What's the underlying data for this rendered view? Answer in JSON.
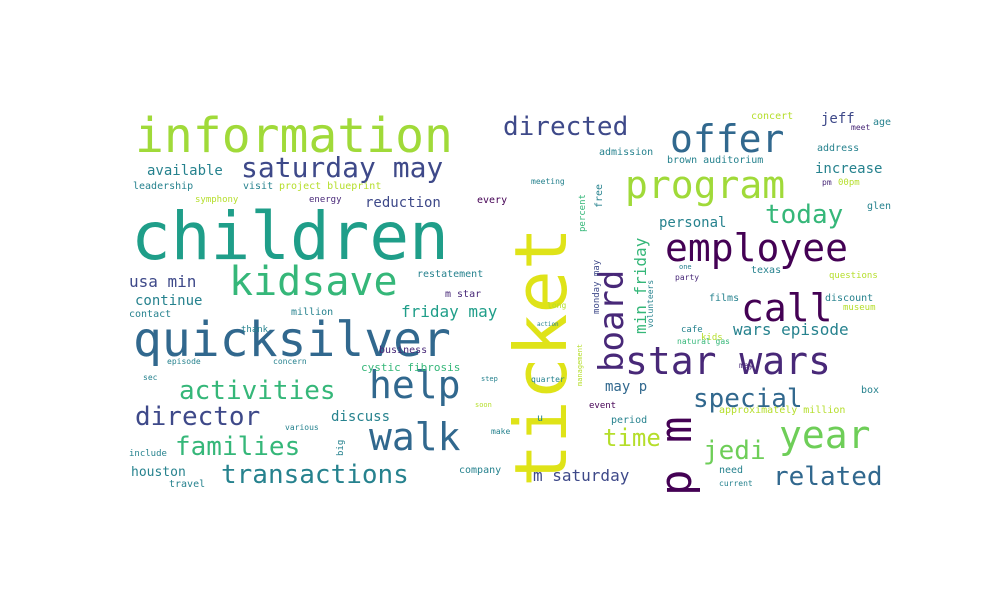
{
  "palette": {
    "dark_purple": "#440154",
    "purple": "#482878",
    "indigo": "#3e4989",
    "blue": "#31688e",
    "teal": "#26828e",
    "green_teal": "#1f9e89",
    "green": "#35b779",
    "light_green": "#6ece58",
    "lime": "#b5de2b",
    "yellow": "#fde725",
    "background": "#ffffff"
  },
  "words": [
    "children",
    "ticket",
    "information",
    "quicksilver",
    "p m",
    "offer",
    "program",
    "employee",
    "kidsave",
    "star wars",
    "help",
    "walk",
    "call",
    "year",
    "board",
    "saturday may",
    "directed",
    "activities",
    "director",
    "transactions",
    "families",
    "today",
    "related",
    "special",
    "jedi",
    "time",
    "wars episode",
    "m saturday",
    "usa min",
    "min friday",
    "friday may",
    "reduction",
    "available",
    "continue",
    "increase",
    "personal",
    "discuss",
    "houston",
    "cystic fibrosis",
    "may p",
    "jeff",
    "leadership",
    "visit",
    "project blueprint",
    "contact",
    "million",
    "restatement",
    "m star",
    "glen",
    "concert",
    "meet",
    "age",
    "admission",
    "brown auditorium",
    "address",
    "meeting",
    "energy",
    "every",
    "percent",
    "free",
    "symphony",
    "thank",
    "concern",
    "business",
    "episode",
    "sec",
    "step",
    "quarter",
    "u",
    "event",
    "period",
    "volunteers",
    "kids",
    "texas",
    "films",
    "discount",
    "museum",
    "questions",
    "cafe",
    "natural gas",
    "may",
    "box",
    "approximately million",
    "need",
    "current",
    "company",
    "include",
    "travel",
    "make",
    "various",
    "big",
    "long",
    "action",
    "management",
    "monday may",
    "one",
    "party",
    "pm",
    "00pm",
    "soon"
  ]
}
